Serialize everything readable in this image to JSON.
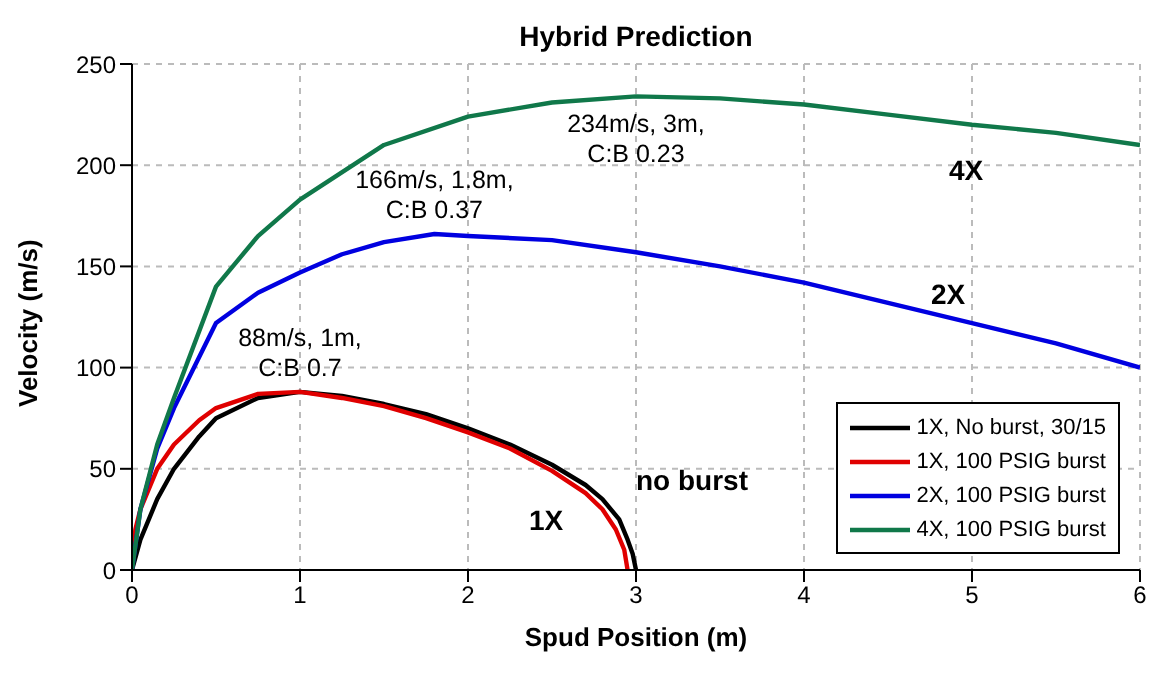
{
  "chart_data": {
    "type": "line",
    "title": "Hybrid Prediction",
    "xlabel": "Spud Position (m)",
    "ylabel": "Velocity (m/s)",
    "xlim": [
      0,
      6
    ],
    "xticks": [
      0,
      1,
      2,
      3,
      4,
      5,
      6
    ],
    "ylim": [
      0,
      250
    ],
    "yticks": [
      0,
      50,
      100,
      150,
      200,
      250
    ],
    "grid": true,
    "legend": "bottom right",
    "line_style": "solid",
    "marker": "none",
    "series": [
      {
        "name": "1X, No burst, 30/15",
        "color": "#000000",
        "x": [
          0,
          0.05,
          0.15,
          0.25,
          0.4,
          0.5,
          0.75,
          1,
          1.25,
          1.5,
          1.75,
          2,
          2.25,
          2.5,
          2.7,
          2.8,
          2.9,
          2.95,
          2.98,
          3
        ],
        "values": [
          0,
          15,
          35,
          50,
          66,
          75,
          85,
          88,
          86,
          82,
          77,
          70,
          62,
          52,
          42,
          35,
          25,
          15,
          8,
          0
        ]
      },
      {
        "name": "1X, 100 PSIG burst",
        "color": "#e00000",
        "x": [
          0,
          0.02,
          0.05,
          0.15,
          0.25,
          0.4,
          0.5,
          0.75,
          1,
          1.25,
          1.5,
          1.75,
          2,
          2.25,
          2.5,
          2.7,
          2.8,
          2.88,
          2.93,
          2.95
        ],
        "values": [
          0,
          20,
          30,
          50,
          62,
          74,
          80,
          87,
          88,
          85,
          81,
          75,
          68,
          60,
          49,
          38,
          30,
          20,
          10,
          0
        ]
      },
      {
        "name": "2X, 100 PSIG burst",
        "color": "#0000e0",
        "x": [
          0,
          0.05,
          0.15,
          0.25,
          0.5,
          0.75,
          1,
          1.25,
          1.5,
          1.8,
          2,
          2.5,
          3,
          3.5,
          4,
          4.5,
          5,
          5.5,
          6
        ],
        "values": [
          0,
          30,
          60,
          80,
          122,
          137,
          147,
          156,
          162,
          166,
          165,
          163,
          157,
          150,
          142,
          132,
          122,
          112,
          100
        ]
      },
      {
        "name": "4X, 100 PSIG burst",
        "color": "#10784a",
        "x": [
          0,
          0.05,
          0.15,
          0.25,
          0.5,
          0.75,
          1,
          1.5,
          2,
          2.5,
          3,
          3.5,
          4,
          4.5,
          5,
          5.5,
          6
        ],
        "values": [
          0,
          30,
          62,
          85,
          140,
          165,
          183,
          210,
          224,
          231,
          234,
          233,
          230,
          225,
          220,
          216,
          210
        ]
      }
    ],
    "annotations": [
      {
        "text": "88m/s, 1m,\nC:B 0.7",
        "x": 1,
        "y": 88
      },
      {
        "text": "166m/s, 1.8m,\nC:B 0.37",
        "x": 1.8,
        "y": 166
      },
      {
        "text": "234m/s, 3m,\nC:B 0.23",
        "x": 3,
        "y": 234
      },
      "4X",
      "2X",
      "1X",
      "no burst"
    ]
  }
}
